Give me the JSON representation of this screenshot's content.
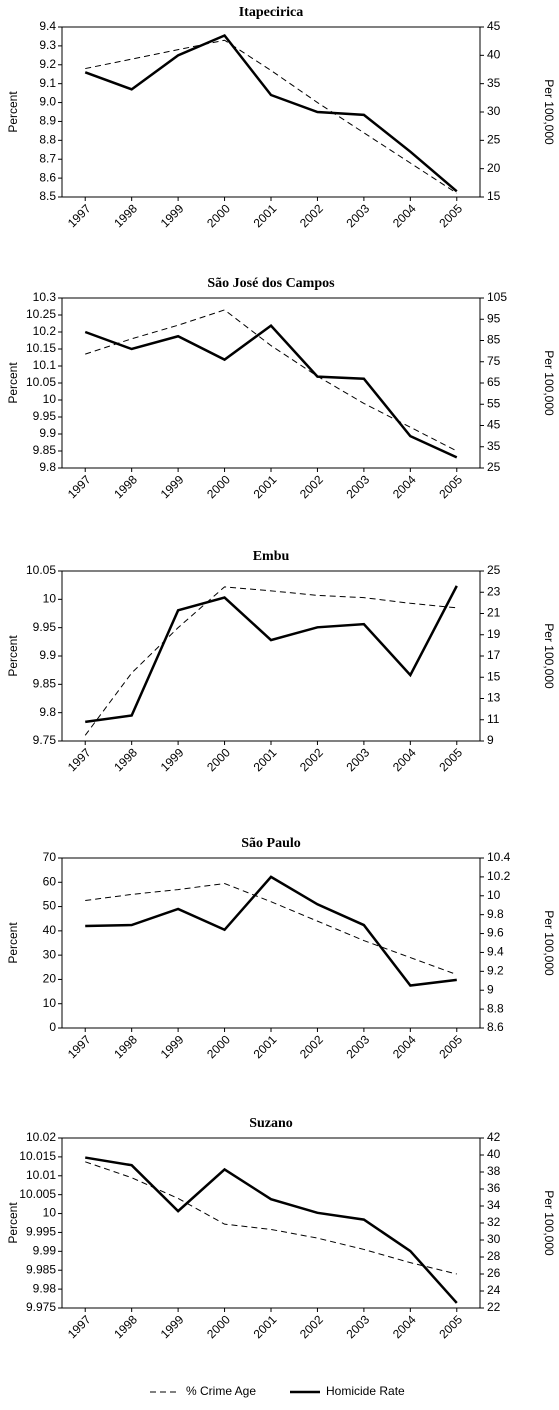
{
  "chart_data": [
    {
      "type": "line",
      "title": "Itapecirica",
      "ylabel": "Percent",
      "y2label": "Per 100,000",
      "categories": [
        "1997",
        "1998",
        "1999",
        "2000",
        "2001",
        "2002",
        "2003",
        "2004",
        "2005"
      ],
      "ylim": [
        8.5,
        9.4
      ],
      "yticks": [
        8.5,
        8.6,
        8.7,
        8.8,
        8.9,
        {
          "value": 9,
          "label": "9.0"
        },
        9.1,
        9.2,
        9.3,
        9.4
      ],
      "y2lim": [
        15,
        45
      ],
      "y2ticks": [
        15,
        20,
        25,
        30,
        35,
        40,
        45
      ],
      "series": [
        {
          "color": "#000000",
          "dash": true,
          "values": [
            9.18,
            9.23,
            9.28,
            9.33,
            9.17,
            9.0,
            8.84,
            8.68,
            8.52
          ]
        },
        {
          "color": "#000000",
          "axis": "y2",
          "values": [
            37,
            34,
            40,
            43.5,
            33,
            30,
            29.5,
            23,
            16
          ]
        }
      ]
    },
    {
      "type": "line",
      "title": "São José dos Campos",
      "ylabel": "Percent",
      "y2label": "Per 100,000",
      "categories": [
        "1997",
        "1998",
        "1999",
        "2000",
        "2001",
        "2002",
        "2003",
        "2004",
        "2005"
      ],
      "ylim": [
        9.8,
        10.3
      ],
      "yticks": [
        9.8,
        9.85,
        9.9,
        9.95,
        10,
        10.05,
        10.1,
        10.15,
        10.2,
        10.25,
        10.3
      ],
      "y2lim": [
        25,
        105
      ],
      "y2ticks": [
        25,
        35,
        45,
        55,
        65,
        75,
        85,
        95,
        105
      ],
      "series": [
        {
          "color": "#000000",
          "dash": true,
          "values": [
            10.135,
            10.18,
            10.22,
            10.265,
            10.16,
            10.07,
            9.99,
            9.92,
            9.85
          ]
        },
        {
          "color": "#000000",
          "axis": "y2",
          "values": [
            89,
            81,
            87,
            76,
            92,
            68,
            67,
            40,
            30
          ]
        }
      ]
    },
    {
      "type": "line",
      "title": "Embu",
      "ylabel": "Percent",
      "y2label": "Per 100,000",
      "categories": [
        "1997",
        "1998",
        "1999",
        "2000",
        "2001",
        "2002",
        "2003",
        "2004",
        "2005"
      ],
      "ylim": [
        9.75,
        10.05
      ],
      "yticks": [
        9.75,
        9.8,
        9.85,
        9.9,
        9.95,
        10,
        10.05
      ],
      "y2lim": [
        9,
        25
      ],
      "y2ticks": [
        9,
        11,
        13,
        15,
        17,
        19,
        21,
        23,
        25
      ],
      "series": [
        {
          "color": "#000000",
          "dash": true,
          "values": [
            9.76,
            9.87,
            9.95,
            10.022,
            10.015,
            10.007,
            10.003,
            9.993,
            9.985
          ]
        },
        {
          "color": "#000000",
          "axis": "y2",
          "values": [
            10.8,
            11.4,
            21.3,
            22.5,
            18.5,
            19.7,
            20,
            15.2,
            23.6
          ]
        }
      ]
    },
    {
      "type": "line",
      "title": "São Paulo",
      "ylabel": "Percent",
      "y2label": "Per 100,000",
      "categories": [
        "1997",
        "1998",
        "1999",
        "2000",
        "2001",
        "2002",
        "2003",
        "2004",
        "2005"
      ],
      "ylim": [
        0,
        70
      ],
      "yticks": [
        0,
        10,
        20,
        30,
        40,
        50,
        60,
        70
      ],
      "y2lim": [
        8.6,
        10.4
      ],
      "y2ticks": [
        8.6,
        8.8,
        9,
        9.2,
        9.4,
        9.6,
        9.8,
        10,
        10.2,
        10.4
      ],
      "series": [
        {
          "color": "#000000",
          "dash": true,
          "values": [
            52.5,
            55,
            57,
            59.5,
            52,
            44,
            36,
            29,
            22
          ]
        },
        {
          "color": "#000000",
          "axis": "y2",
          "values": [
            9.68,
            9.69,
            9.86,
            9.64,
            10.2,
            9.91,
            9.69,
            9.05,
            9.11
          ]
        }
      ]
    },
    {
      "type": "line",
      "title": "Suzano",
      "ylabel": "Percent",
      "y2label": "Per 100,000",
      "categories": [
        "1997",
        "1998",
        "1999",
        "2000",
        "2001",
        "2002",
        "2003",
        "2004",
        "2005"
      ],
      "ylim": [
        9.975,
        10.02
      ],
      "yticks": [
        9.975,
        9.98,
        9.985,
        9.99,
        9.995,
        10,
        10.005,
        10.01,
        10.015,
        10.02
      ],
      "y2lim": [
        22,
        42
      ],
      "y2ticks": [
        22,
        24,
        26,
        28,
        30,
        32,
        34,
        36,
        38,
        40,
        42
      ],
      "series": [
        {
          "name": "% Crime Age",
          "color": "#000000",
          "dash": true,
          "values": [
            10.0137,
            10.0095,
            10.004,
            9.9972,
            9.9958,
            9.9935,
            9.9905,
            9.987,
            9.984
          ]
        },
        {
          "name": "Homicide Rate",
          "color": "#000000",
          "axis": "y2",
          "values": [
            39.7,
            38.8,
            33.4,
            38.3,
            34.8,
            33.2,
            32.4,
            28.7,
            22.6
          ]
        }
      ]
    }
  ]
}
